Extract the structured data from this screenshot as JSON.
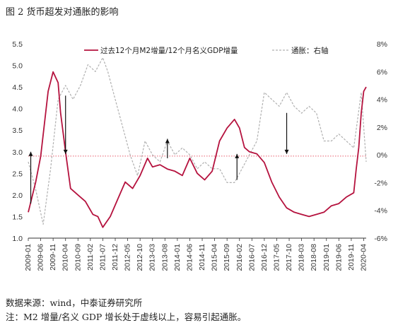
{
  "title": "图 2  货币超发对通胀的影响",
  "source": "数据来源：wind，中泰证券研究所",
  "note": "注：M2 增量/名义 GDP 增长处于虚线以上，容易引起通胀。",
  "chart_data": {
    "type": "line",
    "legend_position": "top",
    "grid": false,
    "series": [
      {
        "name": "过去12个月M2增量/12个月名义GDP增量",
        "axis": "left",
        "color": "#b5123e",
        "style": "solid",
        "x": [
          "2009-01",
          "2009-04",
          "2009-06",
          "2009-09",
          "2009-11",
          "2010-01",
          "2010-02",
          "2010-04",
          "2010-06",
          "2010-09",
          "2010-12",
          "2011-03",
          "2011-05",
          "2011-07",
          "2011-10",
          "2012-01",
          "2012-04",
          "2012-07",
          "2012-10",
          "2013-01",
          "2013-03",
          "2013-06",
          "2013-09",
          "2013-12",
          "2014-03",
          "2014-06",
          "2014-09",
          "2014-12",
          "2015-03",
          "2015-06",
          "2015-09",
          "2015-12",
          "2016-02",
          "2016-04",
          "2016-06",
          "2016-09",
          "2016-12",
          "2017-03",
          "2017-06",
          "2017-09",
          "2017-12",
          "2018-03",
          "2018-06",
          "2018-09",
          "2018-12",
          "2019-03",
          "2019-06",
          "2019-09",
          "2019-12",
          "2020-01",
          "2020-02",
          "2020-03",
          "2020-04",
          "2020-05"
        ],
        "values": [
          1.6,
          2.3,
          2.9,
          4.4,
          4.85,
          4.6,
          3.9,
          3.0,
          2.15,
          2.0,
          1.85,
          1.55,
          1.5,
          1.25,
          1.5,
          1.9,
          2.3,
          2.15,
          2.45,
          2.85,
          2.65,
          2.7,
          2.6,
          2.55,
          2.45,
          2.85,
          2.5,
          2.35,
          2.55,
          3.25,
          3.55,
          3.75,
          3.55,
          3.1,
          3.0,
          2.95,
          2.75,
          2.3,
          1.95,
          1.7,
          1.6,
          1.55,
          1.5,
          1.55,
          1.6,
          1.75,
          1.8,
          1.95,
          2.05,
          2.6,
          3.1,
          3.9,
          4.4,
          4.5
        ]
      },
      {
        "name": "通胀：右轴",
        "axis": "right",
        "color": "#b0b0b0",
        "style": "dashed",
        "x": [
          "2009-01",
          "2009-04",
          "2009-07",
          "2009-10",
          "2010-01",
          "2010-04",
          "2010-07",
          "2010-10",
          "2011-01",
          "2011-04",
          "2011-07",
          "2011-09",
          "2011-12",
          "2012-03",
          "2012-06",
          "2012-09",
          "2012-12",
          "2013-03",
          "2013-06",
          "2013-09",
          "2013-12",
          "2014-03",
          "2014-06",
          "2014-09",
          "2014-12",
          "2015-03",
          "2015-06",
          "2015-09",
          "2015-12",
          "2016-03",
          "2016-06",
          "2016-09",
          "2016-12",
          "2017-03",
          "2017-06",
          "2017-09",
          "2017-12",
          "2018-03",
          "2018-06",
          "2018-09",
          "2018-12",
          "2019-03",
          "2019-06",
          "2019-09",
          "2019-12",
          "2020-03",
          "2020-05"
        ],
        "values": [
          -0.5,
          -2.5,
          -5.0,
          -1.0,
          4.0,
          5.0,
          4.0,
          5.0,
          6.5,
          6.0,
          7.0,
          6.0,
          4.0,
          2.0,
          0.0,
          -1.5,
          1.0,
          0.0,
          -0.5,
          1.0,
          0.0,
          0.5,
          0.0,
          -1.0,
          -0.5,
          -1.0,
          -1.0,
          -2.0,
          -2.0,
          -1.0,
          0.0,
          1.0,
          4.5,
          4.0,
          3.5,
          4.5,
          3.5,
          3.0,
          3.5,
          3.0,
          1.0,
          1.0,
          1.5,
          1.0,
          0.5,
          4.5,
          -0.5
        ]
      }
    ],
    "reference_line": {
      "value": 2.9,
      "axis": "left",
      "color": "#e85c6c",
      "style": "dotted"
    },
    "arrows": [
      {
        "x": "2009-02",
        "from": 1.8,
        "to": 3.0,
        "direction": "up"
      },
      {
        "x": "2010-04",
        "from": 4.3,
        "to": 2.95,
        "direction": "down"
      },
      {
        "x": "2013-09",
        "from": 2.85,
        "to": 3.3,
        "direction": "up"
      },
      {
        "x": "2016-01",
        "from": 2.35,
        "to": 2.95,
        "direction": "up"
      },
      {
        "x": "2017-09",
        "from": 3.9,
        "to": 2.95,
        "direction": "down"
      }
    ],
    "y_left": {
      "min": 1.0,
      "max": 5.5,
      "ticks": [
        "1.0",
        "1.5",
        "2.0",
        "2.5",
        "3.0",
        "3.5",
        "4.0",
        "4.5",
        "5.0",
        "5.5"
      ]
    },
    "y_right": {
      "min": -6,
      "max": 8,
      "ticks": [
        "-6%",
        "-4%",
        "-2%",
        "0%",
        "2%",
        "4%",
        "6%",
        "8%"
      ]
    },
    "x_range": [
      "2009-01",
      "2020-05"
    ],
    "x_ticks": [
      "2009-01",
      "2009-06",
      "2009-11",
      "2010-04",
      "2010-09",
      "2011-02",
      "2011-07",
      "2011-12",
      "2012-05",
      "2012-10",
      "2013-03",
      "2013-08",
      "2014-01",
      "2014-06",
      "2014-11",
      "2015-04",
      "2015-09",
      "2016-02",
      "2016-07",
      "2016-12",
      "2017-05",
      "2017-10",
      "2018-03",
      "2018-08",
      "2019-01",
      "2019-06",
      "2019-11",
      "2020-04"
    ]
  }
}
